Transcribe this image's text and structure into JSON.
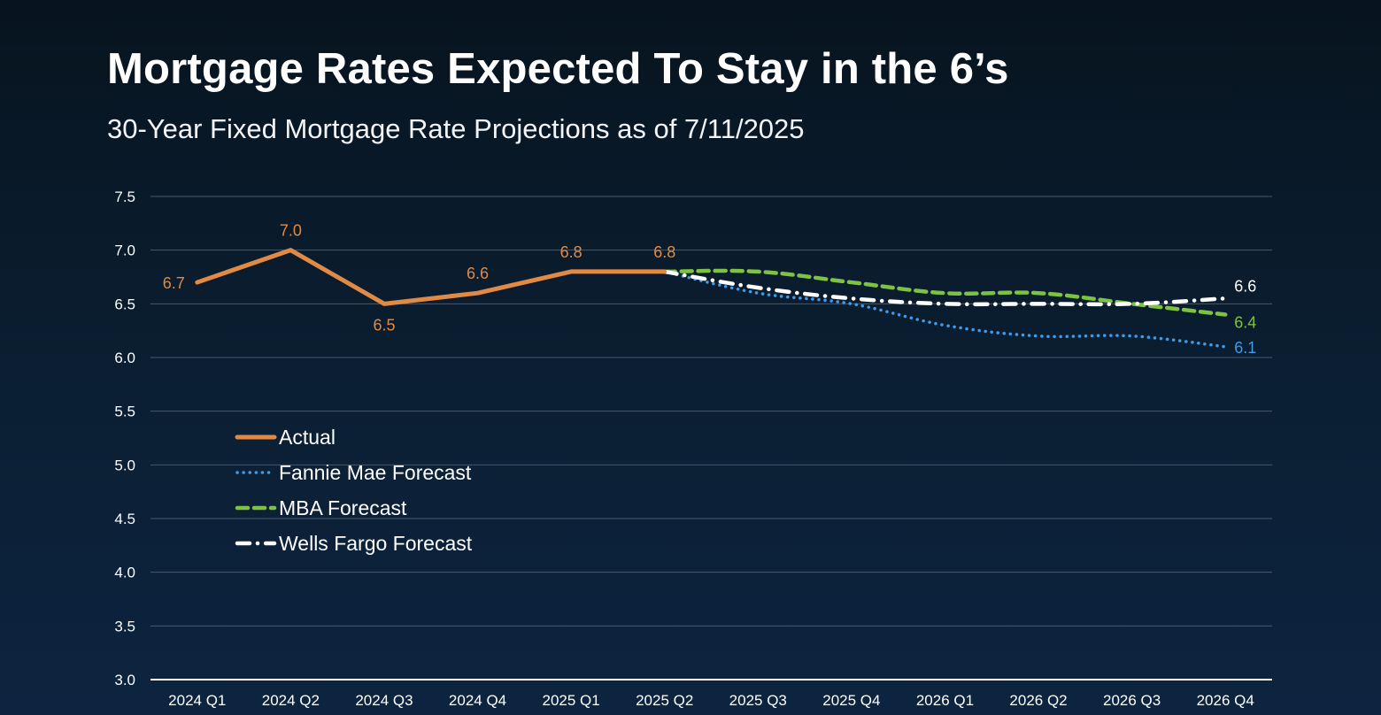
{
  "title": "Mortgage Rates Expected To Stay in the 6’s",
  "subtitle": "30-Year Fixed Mortgage Rate Projections as of 7/11/2025",
  "chart_data": {
    "type": "line",
    "categories": [
      "2024 Q1",
      "2024 Q2",
      "2024 Q3",
      "2024 Q4",
      "2025 Q1",
      "2025 Q2",
      "2025 Q3",
      "2025 Q4",
      "2026 Q1",
      "2026 Q2",
      "2026 Q3",
      "2026 Q4"
    ],
    "ylim": [
      3.0,
      7.5
    ],
    "yticks": [
      "3.0",
      "3.5",
      "4.0",
      "4.5",
      "5.0",
      "5.5",
      "6.0",
      "6.5",
      "7.0",
      "7.5"
    ],
    "grid": true,
    "legend_position": "lower-left",
    "series": [
      {
        "name": "Actual",
        "color": "#e08a45",
        "style": "solid",
        "values": [
          6.7,
          7.0,
          6.5,
          6.6,
          6.8,
          6.8,
          null,
          null,
          null,
          null,
          null,
          null
        ],
        "labels": [
          "6.7",
          "7.0",
          "6.5",
          "6.6",
          "6.8",
          "6.8"
        ]
      },
      {
        "name": "Fannie Mae Forecast",
        "color": "#3d9be9",
        "style": "dotted",
        "values": [
          null,
          null,
          null,
          null,
          null,
          6.8,
          6.6,
          6.5,
          6.3,
          6.2,
          6.2,
          6.1
        ],
        "end_label": "6.1"
      },
      {
        "name": "MBA Forecast",
        "color": "#7dc242",
        "style": "dashed",
        "values": [
          null,
          null,
          null,
          null,
          null,
          6.8,
          6.8,
          6.7,
          6.6,
          6.6,
          6.5,
          6.4
        ],
        "end_label": "6.4"
      },
      {
        "name": "Wells Fargo Forecast",
        "color": "#ffffff",
        "style": "dashdot",
        "values": [
          null,
          null,
          null,
          null,
          null,
          6.8,
          6.65,
          6.55,
          6.5,
          6.5,
          6.5,
          6.55
        ],
        "end_label": "6.6"
      }
    ]
  }
}
